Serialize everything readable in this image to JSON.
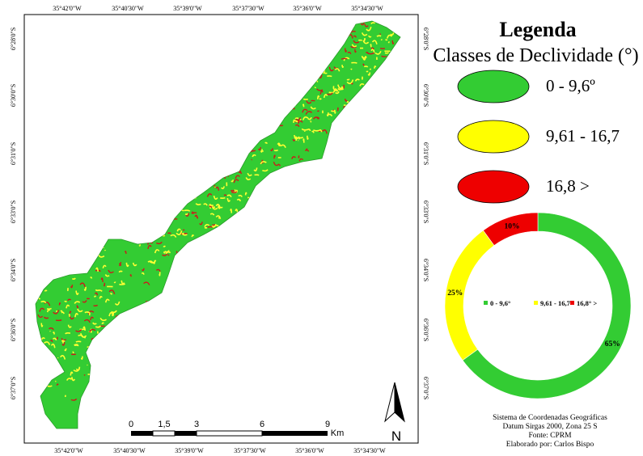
{
  "map": {
    "top_ticks": [
      "35°42'0\"W",
      "35°40'30\"W",
      "35°39'0\"W",
      "35°37'30\"W",
      "35°36'0\"W",
      "35°34'30\"W"
    ],
    "bottom_ticks": [
      "35°42'0\"W",
      "35°40'30\"W",
      "35°39'0\"W",
      "35°37'30\"W",
      "35°36'0\"W",
      "35°34'30\"W"
    ],
    "left_ticks": [
      "6°28'0\"S",
      "6°30'0\"S",
      "6°31'0\"S",
      "6°33'0\"S",
      "6°34'0\"S",
      "6°36'0\"S",
      "6°37'0\"S"
    ],
    "right_ticks": [
      "6°28'0\"S",
      "6°30'0\"S",
      "6°31'0\"S",
      "6°33'0\"S",
      "6°34'0\"S",
      "6°36'0\"S",
      "6°37'0\"S"
    ],
    "scale_labels": [
      "0",
      "1,5",
      "3",
      "6",
      "9"
    ],
    "scale_unit": "Km",
    "north_label": "N"
  },
  "legend": {
    "title": "Legenda",
    "subtitle": "Classes de Declividade (°)",
    "classes": [
      {
        "label": "0 - 9,6º",
        "color": "#33cc33"
      },
      {
        "label": "9,61 - 16,7",
        "color": "#ffff00"
      },
      {
        "label": "16,8 >",
        "color": "#ee0000"
      }
    ]
  },
  "chart_data": {
    "type": "pie",
    "categories": [
      "0 - 9,6°",
      "9,61 - 16,7°",
      "16,8° >"
    ],
    "values": [
      65,
      25,
      10
    ],
    "value_labels": [
      "65%",
      "25%",
      "10%"
    ],
    "colors": [
      "#33cc33",
      "#ffff00",
      "#ee0000"
    ],
    "legend_placement": "center"
  },
  "credits": {
    "line1": "Sistema de Coordenadas Geográficas",
    "line2": "Datum Sirgas 2000, Zona 25 S",
    "line3": "Fonte: CPRM",
    "line4": "Elaborado por: Carlos Bispo"
  }
}
